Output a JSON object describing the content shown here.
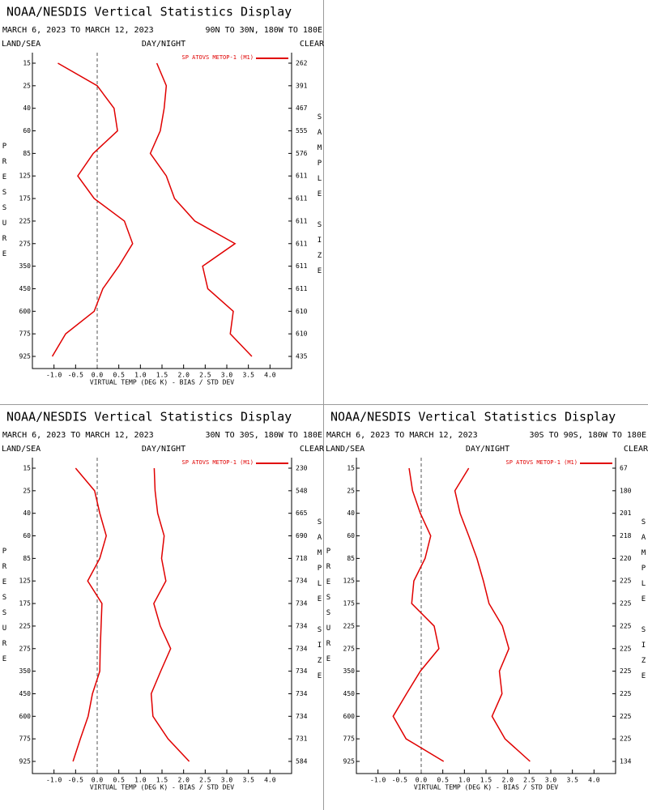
{
  "chart_data": [
    {
      "type": "line",
      "title": "NOAA/NESDIS Vertical Statistics Display",
      "date_range": "MARCH 6, 2023 TO MARCH 12, 2023",
      "region": "90N TO 30N, 180W TO 180E",
      "land_sea_label": "LAND/SEA",
      "day_night_label": "DAY/NIGHT",
      "clear_label": "CLEAR",
      "y_label": "PRESSURE",
      "y2_label": "SAMPLE SIZE",
      "x_label": "VIRTUAL TEMP (DEG K) - BIAS / STD DEV",
      "categories": [
        15,
        25,
        40,
        60,
        85,
        125,
        175,
        225,
        275,
        350,
        450,
        600,
        775,
        925
      ],
      "sample_sizes": [
        262,
        391,
        467,
        555,
        576,
        611,
        611,
        611,
        611,
        611,
        611,
        610,
        610,
        435
      ],
      "series": [
        {
          "name": "SP ATOVS METOP-1 (M1)",
          "color": "#e00000",
          "values": [
            -0.91,
            0.0,
            0.39,
            0.47,
            -0.09,
            -0.45,
            -0.07,
            0.63,
            0.82,
            0.5,
            0.13,
            -0.07,
            -0.73,
            -1.04
          ],
          "std_dev": [
            1.38,
            1.6,
            1.55,
            1.46,
            1.23,
            1.6,
            1.79,
            2.26,
            3.19,
            2.44,
            2.56,
            3.15,
            3.08,
            3.58
          ]
        }
      ],
      "xlim": [
        -1.5,
        4.5
      ],
      "xticks": [
        {
          "value": -1,
          "label": "-1.0"
        },
        -0.5,
        {
          "value": 0,
          "label": "0.0"
        },
        0.5,
        {
          "value": 1,
          "label": "1.0"
        },
        1.5,
        {
          "value": 2,
          "label": "2.0"
        },
        2.5,
        {
          "value": 3,
          "label": "3.0"
        },
        3.5,
        {
          "value": 4,
          "label": "4.0"
        }
      ],
      "zero_line": true
    },
    {
      "type": "line",
      "title": "NOAA/NESDIS Vertical Statistics Display",
      "date_range": "MARCH 6, 2023 TO MARCH 12, 2023",
      "region": "30N TO 30S, 180W TO 180E",
      "land_sea_label": "LAND/SEA",
      "day_night_label": "DAY/NIGHT",
      "clear_label": "CLEAR",
      "y_label": "PRESSURE",
      "y2_label": "SAMPLE SIZE",
      "x_label": "VIRTUAL TEMP (DEG K) - BIAS / STD DEV",
      "categories": [
        15,
        25,
        40,
        60,
        85,
        125,
        175,
        225,
        275,
        350,
        450,
        600,
        775,
        925
      ],
      "sample_sizes": [
        230,
        548,
        665,
        690,
        718,
        734,
        734,
        734,
        734,
        734,
        734,
        734,
        731,
        584
      ],
      "series": [
        {
          "name": "SP ATOVS METOP-1 (M1)",
          "color": "#e00000",
          "values": [
            -0.5,
            -0.06,
            0.06,
            0.21,
            0.06,
            -0.22,
            0.11,
            0.09,
            0.07,
            0.06,
            -0.11,
            -0.21,
            -0.39,
            -0.56
          ],
          "std_dev": [
            1.32,
            1.34,
            1.4,
            1.55,
            1.49,
            1.59,
            1.31,
            1.46,
            1.7,
            1.47,
            1.25,
            1.29,
            1.64,
            2.13
          ]
        }
      ],
      "xlim": [
        -1.5,
        4.5
      ],
      "xticks": [
        {
          "value": -1,
          "label": "-1.0"
        },
        -0.5,
        {
          "value": 0,
          "label": "0.0"
        },
        0.5,
        {
          "value": 1,
          "label": "1.0"
        },
        1.5,
        {
          "value": 2,
          "label": "2.0"
        },
        2.5,
        {
          "value": 3,
          "label": "3.0"
        },
        3.5,
        {
          "value": 4,
          "label": "4.0"
        }
      ],
      "zero_line": true
    },
    {
      "type": "line",
      "title": "NOAA/NESDIS Vertical Statistics Display",
      "date_range": "MARCH 6, 2023 TO MARCH 12, 2023",
      "region": "30S TO 90S, 180W TO 180E",
      "land_sea_label": "LAND/SEA",
      "day_night_label": "DAY/NIGHT",
      "clear_label": "CLEAR",
      "y_label": "PRESSURE",
      "y2_label": "SAMPLE SIZE",
      "x_label": "VIRTUAL TEMP (DEG K) - BIAS / STD DEV",
      "categories": [
        15,
        25,
        40,
        60,
        85,
        125,
        175,
        225,
        275,
        350,
        450,
        600,
        775,
        925
      ],
      "sample_sizes": [
        67,
        180,
        201,
        218,
        220,
        225,
        225,
        225,
        225,
        225,
        225,
        225,
        225,
        134
      ],
      "series": [
        {
          "name": "SP ATOVS METOP-1 (M1)",
          "color": "#e00000",
          "values": [
            -0.28,
            -0.2,
            -0.02,
            0.22,
            0.09,
            -0.17,
            -0.22,
            0.3,
            0.41,
            -0.02,
            -0.34,
            -0.65,
            -0.35,
            0.52
          ],
          "std_dev": [
            1.1,
            0.78,
            0.9,
            1.1,
            1.29,
            1.44,
            1.57,
            1.88,
            2.03,
            1.81,
            1.87,
            1.64,
            1.94,
            2.52
          ]
        }
      ],
      "xlim": [
        -1.5,
        4.5
      ],
      "xticks": [
        {
          "value": -1,
          "label": "-1.0"
        },
        -0.5,
        {
          "value": 0,
          "label": "0.0"
        },
        0.5,
        {
          "value": 1,
          "label": "1.0"
        },
        1.5,
        {
          "value": 2,
          "label": "2.0"
        },
        2.5,
        {
          "value": 3,
          "label": "3.0"
        },
        3.5,
        {
          "value": 4,
          "label": "4.0"
        }
      ],
      "zero_line": true
    }
  ]
}
